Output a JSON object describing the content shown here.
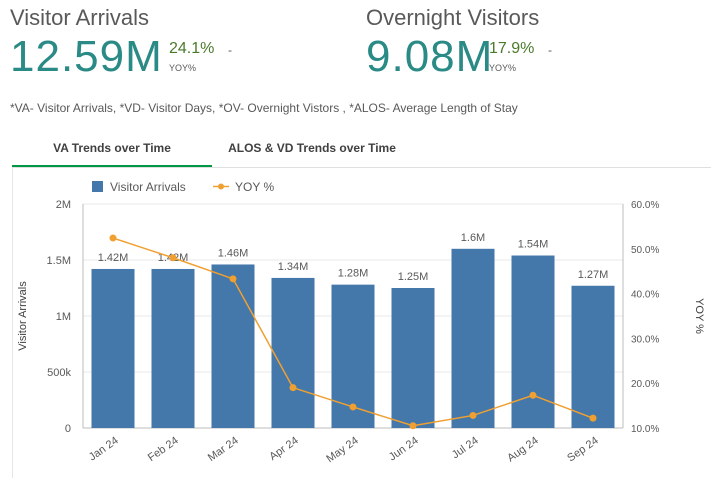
{
  "kpis": [
    {
      "title": "Visitor Arrivals",
      "value": "12.59M",
      "change": "24.1%",
      "dash": "-",
      "change_label": "YOY%"
    },
    {
      "title": "Overnight Visitors",
      "value": "9.08M",
      "change": "17.9%",
      "dash": "-",
      "change_label": "YOY%"
    }
  ],
  "footnote": "*VA- Visitor Arrivals, *VD- Visitor Days, *OV- Overnight Vistors , *ALOS- Average Length of Stay",
  "tabs": [
    {
      "label": "VA Trends over Time",
      "active": true
    },
    {
      "label": "ALOS & VD Trends over Time",
      "active": false
    }
  ],
  "colors": {
    "bar": "#4477aa",
    "line": "#f0a030",
    "kpi_value": "#2a8a85",
    "kpi_change": "#4a7a2a",
    "tab_active": "#009845"
  },
  "chart_data": {
    "type": "bar",
    "categories": [
      "Jan 24",
      "Feb 24",
      "Mar 24",
      "Apr 24",
      "May 24",
      "Jun 24",
      "Jul 24",
      "Aug 24",
      "Sep 24"
    ],
    "series": [
      {
        "name": "Visitor Arrivals",
        "type": "bar",
        "axis": "left",
        "values": [
          1420000,
          1420000,
          1460000,
          1340000,
          1280000,
          1250000,
          1600000,
          1540000,
          1270000
        ],
        "labels": [
          "1.42M",
          "1.42M",
          "1.46M",
          "1.34M",
          "1.28M",
          "1.25M",
          "1.6M",
          "1.54M",
          "1.27M"
        ]
      },
      {
        "name": "YOY %",
        "type": "line",
        "axis": "right",
        "values": [
          52.4,
          48.0,
          43.3,
          19.0,
          14.7,
          10.5,
          12.8,
          17.3,
          12.2
        ]
      }
    ],
    "ylabel": "Visitor Arrivals",
    "y2label": "YOY %",
    "ylim": [
      0,
      2000000
    ],
    "y2lim": [
      10,
      60
    ],
    "yticks": [
      {
        "value": 0,
        "label": "0"
      },
      {
        "value": 500000,
        "label": "500k"
      },
      {
        "value": 1000000,
        "label": "1M"
      },
      {
        "value": 1500000,
        "label": "1.5M"
      },
      {
        "value": 2000000,
        "label": "2M"
      }
    ],
    "y2ticks": [
      {
        "value": 10,
        "label": "10.0%"
      },
      {
        "value": 20,
        "label": "20.0%"
      },
      {
        "value": 30,
        "label": "30.0%"
      },
      {
        "value": 40,
        "label": "40.0%"
      },
      {
        "value": 50,
        "label": "50.0%"
      },
      {
        "value": 60,
        "label": "60.0%"
      }
    ],
    "grid": true,
    "legend_position": "top-left"
  }
}
